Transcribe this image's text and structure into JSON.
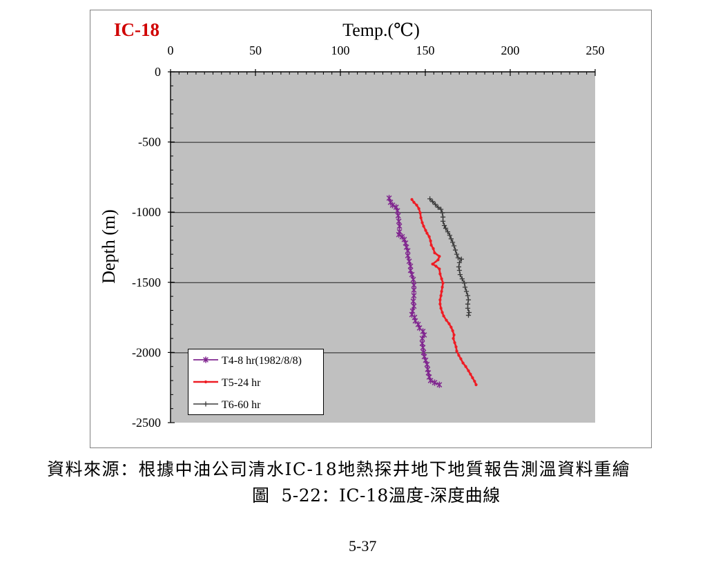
{
  "page": {
    "source_note": "資料來源：根據中油公司清水IC-18地熱探井地下地質報告測溫資料重繪",
    "figure_caption": "圖  5-22：IC-18溫度-深度曲線",
    "page_number": "5-37"
  },
  "chart_data": {
    "type": "line",
    "title": "IC-18",
    "title_color": "#d00000",
    "xlabel": "Temp.(℃)",
    "ylabel": "Depth (m)",
    "xlim": [
      0,
      250
    ],
    "ylim": [
      -2500,
      0
    ],
    "x_ticks": [
      0,
      50,
      100,
      150,
      200,
      250
    ],
    "y_ticks": [
      0,
      -500,
      -1000,
      -1500,
      -2000,
      -2500
    ],
    "x_axis_position": "top",
    "grid": {
      "horizontal": true,
      "vertical": false
    },
    "legend_position": "bottom-left",
    "plot_background": "#c0c0c0",
    "series": [
      {
        "name": "T4-8 hr(1982/8/8)",
        "color": "#80268f",
        "marker": "asterisk",
        "x": [
          128.7,
          129.5,
          130.7,
          132.8,
          133.6,
          134.0,
          134.4,
          134.8,
          134.8,
          134.4,
          136.4,
          137.6,
          138.4,
          138.9,
          139.7,
          139.7,
          140.5,
          141.3,
          141.3,
          142.1,
          142.9,
          143.3,
          143.3,
          143.3,
          142.9,
          143.3,
          142.5,
          142.1,
          143.7,
          144.1,
          145.8,
          146.6,
          148.6,
          149.4,
          148.2,
          148.2,
          148.6,
          149.0,
          149.4,
          150.2,
          151.0,
          151.4,
          151.8,
          152.3,
          153.1,
          155.5,
          158.3
        ],
        "y": [
          -900,
          -930,
          -950,
          -965,
          -990,
          -1025,
          -1065,
          -1100,
          -1140,
          -1160,
          -1175,
          -1195,
          -1220,
          -1250,
          -1275,
          -1310,
          -1350,
          -1385,
          -1415,
          -1445,
          -1480,
          -1520,
          -1555,
          -1595,
          -1635,
          -1670,
          -1705,
          -1730,
          -1750,
          -1775,
          -1800,
          -1825,
          -1850,
          -1875,
          -1900,
          -1935,
          -1965,
          -2000,
          -2030,
          -2055,
          -2085,
          -2120,
          -2145,
          -2175,
          -2200,
          -2215,
          -2230
        ]
      },
      {
        "name": "T5-24 hr",
        "color": "#ee1c24",
        "marker": "dot",
        "x": [
          142.1,
          143.3,
          144.9,
          146.2,
          147.0,
          147.4,
          148.2,
          149.0,
          150.2,
          151.0,
          152.3,
          153.1,
          153.5,
          154.7,
          155.5,
          158.3,
          157.5,
          154.3,
          156.3,
          158.3,
          158.7,
          159.6,
          160.4,
          160.0,
          159.6,
          159.2,
          158.7,
          158.7,
          159.2,
          160.0,
          160.8,
          162.4,
          164.0,
          165.2,
          166.1,
          166.9,
          166.5,
          167.3,
          168.1,
          168.5,
          169.7,
          170.9,
          172.2,
          173.8,
          175.4,
          176.6,
          177.8,
          179.0,
          179.9
        ],
        "y": [
          -910,
          -930,
          -950,
          -975,
          -1005,
          -1040,
          -1075,
          -1100,
          -1130,
          -1150,
          -1175,
          -1205,
          -1235,
          -1260,
          -1290,
          -1315,
          -1340,
          -1370,
          -1385,
          -1405,
          -1440,
          -1475,
          -1505,
          -1535,
          -1565,
          -1595,
          -1625,
          -1655,
          -1685,
          -1715,
          -1740,
          -1770,
          -1795,
          -1820,
          -1845,
          -1875,
          -1900,
          -1930,
          -1960,
          -1990,
          -2020,
          -2045,
          -2075,
          -2100,
          -2130,
          -2155,
          -2180,
          -2205,
          -2230
        ]
      },
      {
        "name": "T6-60 hr",
        "color": "#3a3a3a",
        "marker": "plus",
        "x": [
          152.7,
          154.3,
          155.9,
          157.5,
          159.2,
          160.0,
          160.4,
          160.4,
          161.2,
          162.0,
          163.2,
          164.4,
          165.2,
          166.1,
          166.9,
          167.7,
          168.5,
          169.3,
          171.3,
          170.1,
          169.7,
          170.1,
          170.5,
          171.7,
          173.0,
          173.4,
          174.2,
          175.0,
          175.4,
          175.0,
          175.0,
          175.8,
          175.4
        ],
        "y": [
          -905,
          -925,
          -945,
          -965,
          -980,
          -1005,
          -1035,
          -1065,
          -1095,
          -1115,
          -1140,
          -1165,
          -1190,
          -1215,
          -1240,
          -1270,
          -1300,
          -1325,
          -1335,
          -1360,
          -1390,
          -1415,
          -1445,
          -1475,
          -1505,
          -1535,
          -1565,
          -1595,
          -1625,
          -1655,
          -1685,
          -1715,
          -1735
        ]
      }
    ]
  }
}
